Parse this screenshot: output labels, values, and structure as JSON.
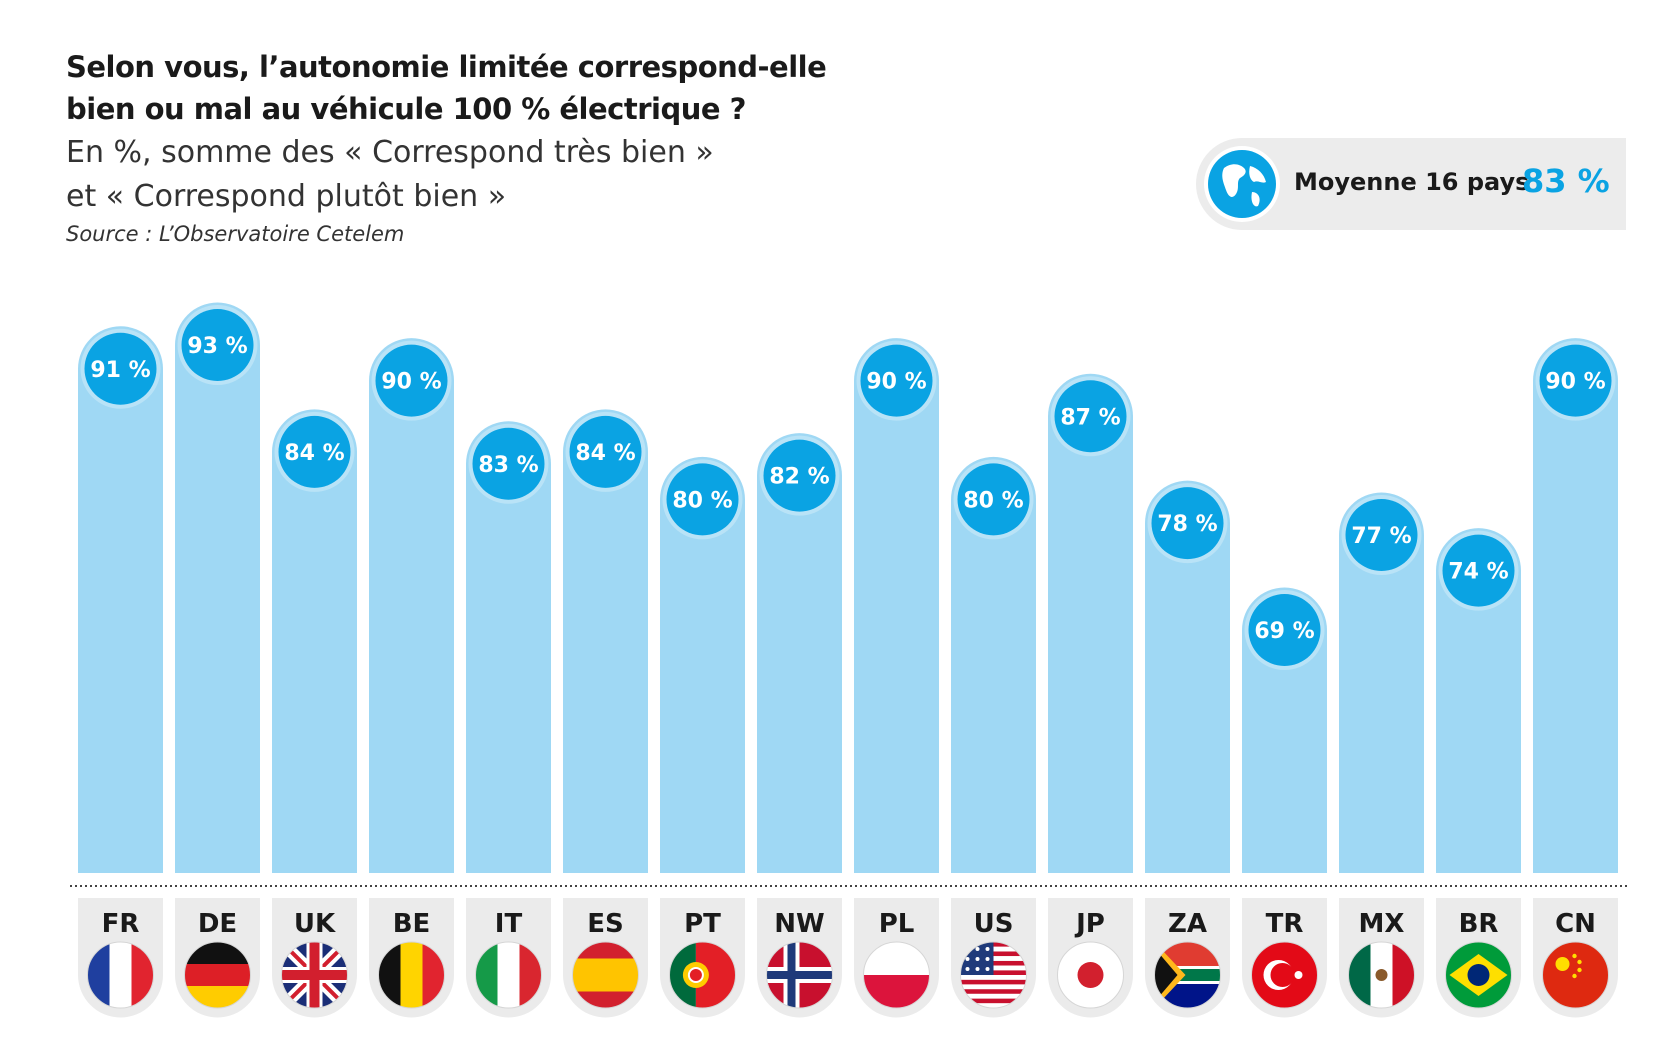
{
  "title_line1": "Selon vous, l’autonomie limitée correspond-elle",
  "title_line2": "bien ou mal au véhicule 100 % électrique ?",
  "subtitle_line1": "En %, somme des « Correspond très bien »",
  "subtitle_line2": "et « Correspond plutôt bien »",
  "source": "Source : L’Observatoire Cetelem",
  "average": {
    "label": "Moyenne 16 pays",
    "value_text": "83 %",
    "value": 83,
    "icon": "globe-icon"
  },
  "colors": {
    "bar": "#9fd8f4",
    "bubble": "#0aa3e3",
    "bubble_ring": "#b9e3f7",
    "tile": "#ebebeb"
  },
  "chart_data": {
    "type": "bar",
    "title": "Selon vous, l’autonomie limitée correspond-elle bien ou mal au véhicule 100 % électrique ?",
    "ylabel": "%",
    "ylim": [
      0,
      100
    ],
    "categories": [
      "FR",
      "DE",
      "UK",
      "BE",
      "IT",
      "ES",
      "PT",
      "NW",
      "PL",
      "US",
      "JP",
      "ZA",
      "TR",
      "MX",
      "BR",
      "CN"
    ],
    "values": [
      91,
      93,
      84,
      90,
      83,
      84,
      80,
      82,
      90,
      80,
      87,
      78,
      69,
      77,
      74,
      90
    ],
    "labels": [
      "91 %",
      "93 %",
      "84 %",
      "90 %",
      "83 %",
      "84 %",
      "80 %",
      "82 %",
      "90 %",
      "80 %",
      "87 %",
      "78 %",
      "69 %",
      "77 %",
      "74 %",
      "90 %"
    ],
    "flags": [
      "flag-fr-icon",
      "flag-de-icon",
      "flag-uk-icon",
      "flag-be-icon",
      "flag-it-icon",
      "flag-es-icon",
      "flag-pt-icon",
      "flag-nw-icon",
      "flag-pl-icon",
      "flag-us-icon",
      "flag-jp-icon",
      "flag-za-icon",
      "flag-tr-icon",
      "flag-mx-icon",
      "flag-br-icon",
      "flag-cn-icon"
    ]
  }
}
